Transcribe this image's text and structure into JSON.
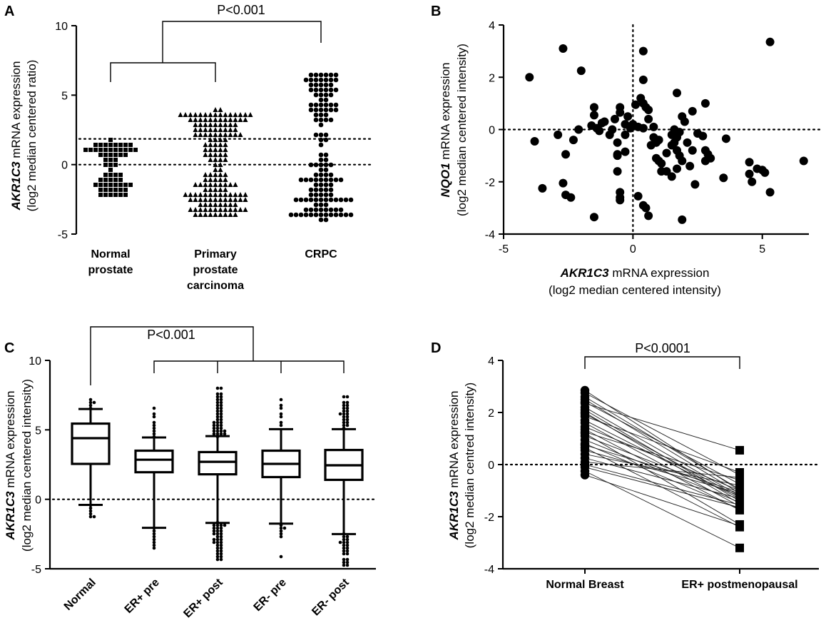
{
  "chart_data": [
    {
      "panel": "A",
      "type": "scatter",
      "ylabel_gene": "AKR1C3",
      "ylabel_rest": " mRNA expression",
      "ylabel_line2": "(log2 median centered ratio)",
      "ylim": [
        -5,
        10
      ],
      "yticks": [
        -5,
        0,
        5,
        10
      ],
      "reference_lines": [
        0,
        1.85
      ],
      "categories": [
        {
          "label": [
            "Normal",
            "prostate"
          ],
          "marker": "square",
          "stats": {
            "n": 60,
            "median": -0.3,
            "min": -2.25,
            "max": 1.7
          }
        },
        {
          "label": [
            "Primary",
            "prostate",
            "carcinoma"
          ],
          "marker": "triangle",
          "stats": {
            "n": 160,
            "median": -0.2,
            "min": -3.6,
            "max": 3.8
          }
        },
        {
          "label": [
            "CRPC"
          ],
          "marker": "circle",
          "stats": {
            "n": 130,
            "median": 0.9,
            "min": -3.9,
            "max": 6.5
          }
        }
      ],
      "annotation": "P<0.001"
    },
    {
      "panel": "B",
      "type": "scatter",
      "xlabel_gene": "AKR1C3",
      "xlabel_rest": " mRNA expression",
      "xlabel_line2": "(log2 median centered intensity)",
      "ylabel_gene": "NQO1",
      "ylabel_rest": " mRNA expression",
      "ylabel_line2": "(log2 median centered intensity)",
      "xlim": [
        -5,
        6.8
      ],
      "ylim": [
        -4,
        4
      ],
      "xticks": [
        -5,
        0,
        5
      ],
      "yticks": [
        -4,
        -2,
        0,
        2,
        4
      ],
      "points": [
        [
          -4.0,
          2.0
        ],
        [
          -3.8,
          -0.45
        ],
        [
          -3.5,
          -2.25
        ],
        [
          -2.7,
          3.1
        ],
        [
          -2.9,
          -0.2
        ],
        [
          -2.7,
          -2.05
        ],
        [
          -2.6,
          -2.5
        ],
        [
          -2.6,
          -0.95
        ],
        [
          -2.4,
          -2.6
        ],
        [
          -2.3,
          -0.4
        ],
        [
          -2.0,
          2.25
        ],
        [
          -2.1,
          0.0
        ],
        [
          -1.5,
          0.85
        ],
        [
          -1.5,
          0.55
        ],
        [
          -1.6,
          0.15
        ],
        [
          -1.4,
          0.05
        ],
        [
          -1.3,
          -0.05
        ],
        [
          -1.2,
          0.25
        ],
        [
          -1.1,
          0.3
        ],
        [
          -1.5,
          -3.35
        ],
        [
          -0.9,
          -0.2
        ],
        [
          -0.7,
          0.4
        ],
        [
          -0.6,
          -0.5
        ],
        [
          -0.6,
          -0.95
        ],
        [
          -0.3,
          -0.85
        ],
        [
          -0.3,
          0.2
        ],
        [
          -0.8,
          0.0
        ],
        [
          -0.3,
          -0.2
        ],
        [
          -0.5,
          0.85
        ],
        [
          -0.5,
          0.65
        ],
        [
          -0.2,
          0.5
        ],
        [
          -0.1,
          0.05
        ],
        [
          0.1,
          0.95
        ],
        [
          0.0,
          0.2
        ],
        [
          0.2,
          0.1
        ],
        [
          -0.6,
          -1.0
        ],
        [
          -0.6,
          -1.6
        ],
        [
          -0.5,
          -2.4
        ],
        [
          -0.5,
          -2.6
        ],
        [
          -0.5,
          -2.7
        ],
        [
          0.2,
          -2.55
        ],
        [
          0.4,
          -2.9
        ],
        [
          0.6,
          -3.3
        ],
        [
          0.5,
          -3.0
        ],
        [
          0.3,
          1.2
        ],
        [
          0.4,
          1.0
        ],
        [
          0.5,
          0.85
        ],
        [
          0.6,
          0.75
        ],
        [
          0.4,
          1.9
        ],
        [
          0.4,
          3.0
        ],
        [
          0.6,
          0.4
        ],
        [
          0.4,
          0.05
        ],
        [
          0.8,
          0.1
        ],
        [
          0.9,
          -0.5
        ],
        [
          0.7,
          -0.6
        ],
        [
          0.9,
          -1.1
        ],
        [
          1.0,
          -0.4
        ],
        [
          1.0,
          -1.2
        ],
        [
          1.1,
          -1.6
        ],
        [
          1.3,
          -0.9
        ],
        [
          1.5,
          -0.6
        ],
        [
          1.5,
          -0.2
        ],
        [
          1.6,
          -0.5
        ],
        [
          1.7,
          -0.3
        ],
        [
          1.8,
          -0.1
        ],
        [
          1.6,
          0.0
        ],
        [
          1.7,
          -0.8
        ],
        [
          1.8,
          -1.0
        ],
        [
          1.9,
          -1.2
        ],
        [
          1.7,
          -1.5
        ],
        [
          1.7,
          1.4
        ],
        [
          1.9,
          0.5
        ],
        [
          2.0,
          0.3
        ],
        [
          2.3,
          0.7
        ],
        [
          2.1,
          -0.5
        ],
        [
          2.2,
          -1.4
        ],
        [
          2.4,
          -2.1
        ],
        [
          2.3,
          -0.8
        ],
        [
          1.5,
          -1.8
        ],
        [
          1.9,
          -3.45
        ],
        [
          2.7,
          -0.25
        ],
        [
          2.8,
          -0.8
        ],
        [
          2.9,
          -0.95
        ],
        [
          3.0,
          -1.1
        ],
        [
          2.8,
          -1.2
        ],
        [
          2.8,
          1.0
        ],
        [
          3.6,
          -0.35
        ],
        [
          3.5,
          -1.85
        ],
        [
          4.5,
          -1.25
        ],
        [
          4.5,
          -1.7
        ],
        [
          4.6,
          -2.0
        ],
        [
          4.8,
          -1.5
        ],
        [
          5.0,
          -1.55
        ],
        [
          5.1,
          -1.65
        ],
        [
          5.3,
          -2.4
        ],
        [
          5.3,
          3.35
        ],
        [
          6.6,
          -1.2
        ],
        [
          1.1,
          -1.3
        ],
        [
          0.8,
          -0.3
        ],
        [
          1.3,
          -1.6
        ],
        [
          2.5,
          -0.15
        ]
      ]
    },
    {
      "panel": "C",
      "type": "box",
      "ylabel_gene": "AKR1C3",
      "ylabel_rest": " mRNA expression",
      "ylabel_line2": "(log2 median centered intensity)",
      "ylim": [
        -5,
        10
      ],
      "yticks": [
        -5,
        0,
        5,
        10
      ],
      "reference_line": 0,
      "categories": [
        "Normal",
        "ER+ pre",
        "ER+ post",
        "ER- pre",
        "ER- post"
      ],
      "boxes": [
        {
          "q1": 2.55,
          "median": 4.4,
          "q3": 5.45,
          "whisker_low": -0.4,
          "whisker_high": 6.5,
          "outliers_low": [
            -0.5,
            -0.6,
            -0.8,
            -1.0,
            -1.15,
            -1.3
          ],
          "outliers_high": [
            6.6,
            6.75,
            6.9,
            7.05,
            7.2
          ]
        },
        {
          "q1": 1.95,
          "median": 2.85,
          "q3": 3.5,
          "whisker_low": -2.05,
          "whisker_high": 4.45,
          "outliers_low": [
            -2.1,
            -2.3,
            -2.5,
            -2.7,
            -2.9,
            -3.1,
            -3.3,
            -3.45
          ],
          "outliers_high": [
            4.55,
            4.7,
            4.9,
            5.1,
            5.3,
            5.6,
            5.9,
            6.2,
            6.5
          ]
        },
        {
          "q1": 1.8,
          "median": 2.7,
          "q3": 3.4,
          "whisker_low": -1.7,
          "whisker_high": 4.55,
          "outliers_low": [
            -1.8,
            -1.9,
            -2.0,
            -2.1,
            -2.25,
            -2.4,
            -2.55,
            -2.7,
            -2.85,
            -3.0,
            -3.2,
            -3.4,
            -3.6,
            -3.8,
            -4.0,
            -4.2,
            -4.35
          ],
          "outliers_high": [
            4.6,
            4.7,
            4.8,
            4.9,
            5.0,
            5.1,
            5.25,
            5.4,
            5.55,
            5.7,
            5.9,
            6.1,
            6.3,
            6.5,
            6.7,
            6.9,
            7.1,
            7.3,
            7.6,
            7.9
          ]
        },
        {
          "q1": 1.6,
          "median": 2.55,
          "q3": 3.5,
          "whisker_low": -1.75,
          "whisker_high": 5.05,
          "outliers_low": [
            -1.85,
            -2.0,
            -2.15,
            -2.3,
            -2.5,
            -2.7,
            -4.1
          ],
          "outliers_high": [
            5.3,
            5.6,
            5.9,
            6.2,
            6.5,
            6.8,
            7.2
          ]
        },
        {
          "q1": 1.4,
          "median": 2.45,
          "q3": 3.55,
          "whisker_low": -2.5,
          "whisker_high": 5.05,
          "outliers_low": [
            -2.6,
            -2.8,
            -3.0,
            -3.2,
            -3.4,
            -3.6,
            -3.8,
            -4.0,
            -4.3,
            -4.6,
            -4.75
          ],
          "outliers_high": [
            5.2,
            5.4,
            5.6,
            5.8,
            6.0,
            6.2,
            6.4,
            6.6,
            6.8,
            7.0,
            7.35
          ]
        }
      ],
      "annotation": "P<0.001"
    },
    {
      "panel": "D",
      "type": "paired",
      "ylabel_gene": "AKR1C3",
      "ylabel_rest": " mRNA expression",
      "ylabel_line2": "(log2 median centred intensity)",
      "ylim": [
        -4,
        4
      ],
      "yticks": [
        -4,
        -2,
        0,
        2,
        4
      ],
      "reference_line": 0,
      "categories": [
        "Normal Breast",
        "ER+ postmenopausal"
      ],
      "pairs": [
        [
          2.85,
          -1.0
        ],
        [
          2.75,
          -0.4
        ],
        [
          2.6,
          -0.95
        ],
        [
          2.5,
          -1.1
        ],
        [
          2.35,
          0.55
        ],
        [
          2.2,
          -1.2
        ],
        [
          2.1,
          -1.4
        ],
        [
          2.0,
          -1.5
        ],
        [
          1.85,
          -0.3
        ],
        [
          1.7,
          -1.3
        ],
        [
          1.6,
          -1.6
        ],
        [
          1.45,
          -1.0
        ],
        [
          1.35,
          -1.75
        ],
        [
          1.2,
          -2.3
        ],
        [
          1.1,
          -1.2
        ],
        [
          0.95,
          -1.45
        ],
        [
          0.8,
          -1.7
        ],
        [
          0.65,
          -2.4
        ],
        [
          0.55,
          -1.1
        ],
        [
          0.4,
          -0.8
        ],
        [
          0.25,
          -1.3
        ],
        [
          0.1,
          -0.5
        ],
        [
          0.0,
          -1.55
        ],
        [
          -0.1,
          -1.65
        ],
        [
          -0.25,
          -3.2
        ],
        [
          -0.4,
          -2.35
        ],
        [
          1.25,
          -0.6
        ],
        [
          1.95,
          -1.25
        ],
        [
          0.75,
          -1.05
        ],
        [
          2.4,
          -0.75
        ]
      ],
      "annotation": "P<0.0001"
    }
  ]
}
